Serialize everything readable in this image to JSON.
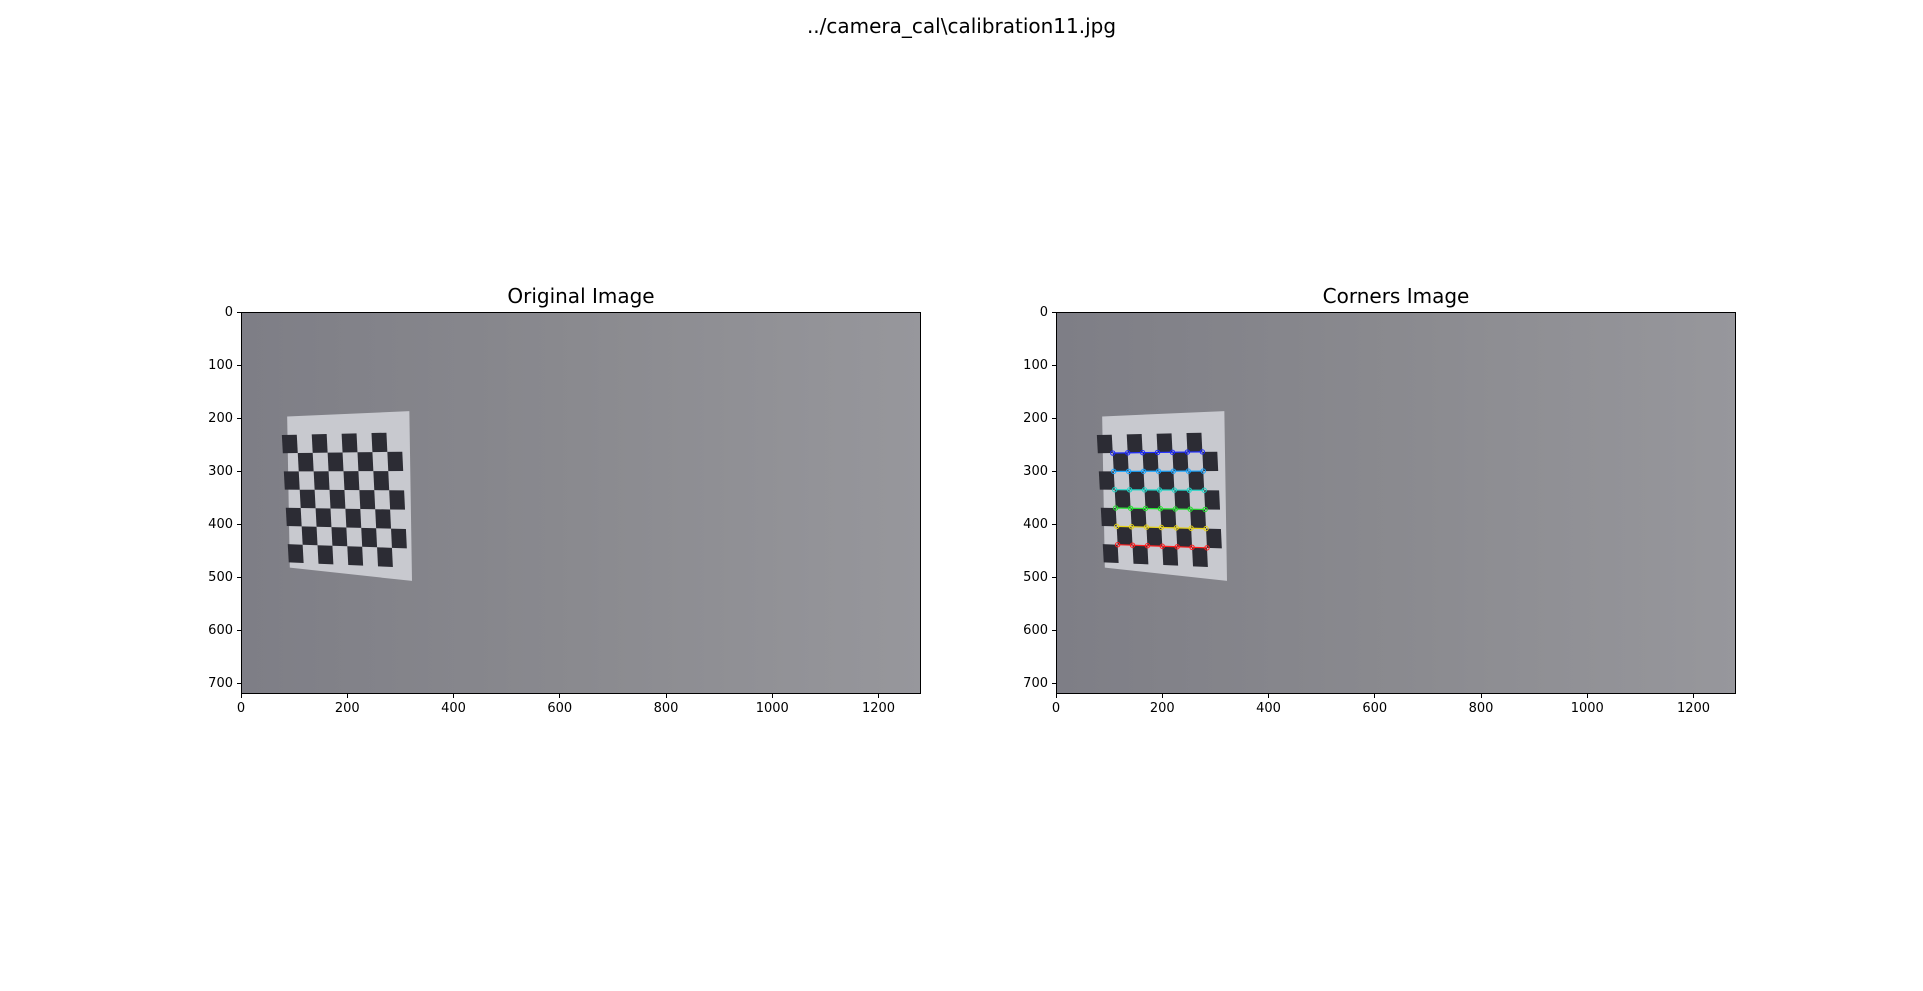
{
  "figure": {
    "suptitle": "../camera_cal\\calibration11.jpg"
  },
  "panels": [
    {
      "title": "Original Image"
    },
    {
      "title": "Corners Image"
    }
  ],
  "axes": {
    "xticks": [
      "0",
      "200",
      "400",
      "600",
      "800",
      "1000",
      "1200"
    ],
    "yticks": [
      "0",
      "100",
      "200",
      "300",
      "400",
      "500",
      "600",
      "700"
    ],
    "xlim": [
      0,
      1280
    ],
    "ylim": [
      720,
      0
    ]
  },
  "colors": {
    "wall": "#8a8a8f",
    "paper": "#c8c9cf",
    "square": "#2c2c34",
    "corner_rows": [
      "#1f2dff",
      "#1aa6ff",
      "#20d6c8",
      "#25e030",
      "#e6d21a",
      "#ff2020"
    ]
  }
}
